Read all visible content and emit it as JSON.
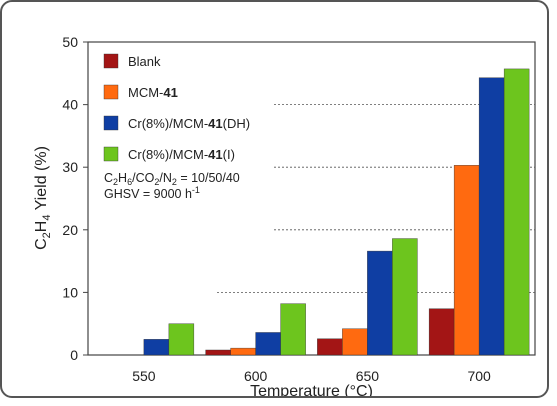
{
  "chart_data": {
    "type": "bar",
    "title": "",
    "xlabel": "Temperature (°C)",
    "ylabel": "C2H4 Yield (%)",
    "ylim": [
      0,
      50
    ],
    "yticks": [
      0,
      10,
      20,
      30,
      40,
      50
    ],
    "categories": [
      "550",
      "600",
      "650",
      "700"
    ],
    "series": [
      {
        "name": "Blank",
        "color": "#a31515",
        "values": [
          0,
          0.8,
          2.6,
          7.4
        ]
      },
      {
        "name": "MCM-41",
        "color": "#ff6a10",
        "values": [
          0,
          1.1,
          4.2,
          30.3
        ]
      },
      {
        "name": "Cr(8%)/MCM-41(DH)",
        "color": "#0f3ea3",
        "values": [
          2.5,
          3.6,
          16.6,
          44.3
        ]
      },
      {
        "name": "Cr(8%)/MCM-41(I)",
        "color": "#6dc51e",
        "values": [
          5.0,
          8.2,
          18.6,
          45.7
        ]
      }
    ],
    "grid": "dashed horizontal at 20, 30, 40",
    "legend_position": "top-left",
    "annotation": {
      "line1": "C2H6/CO2/N2 = 10/50/40",
      "line2": "GHSV = 9000 h-1"
    }
  }
}
